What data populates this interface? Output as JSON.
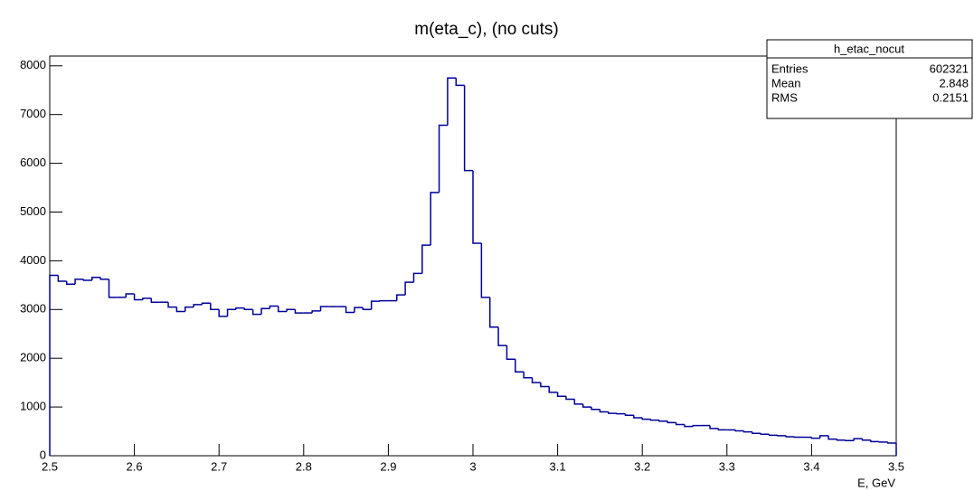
{
  "chart_data": {
    "type": "histogram",
    "title": "m(eta_c), (no cuts)",
    "x_label": "E, GeV",
    "bins": [
      2.5,
      2.51,
      2.52,
      2.53,
      2.54,
      2.55,
      2.56,
      2.57,
      2.58,
      2.59,
      2.6,
      2.61,
      2.62,
      2.63,
      2.64,
      2.65,
      2.66,
      2.67,
      2.68,
      2.69,
      2.7,
      2.71,
      2.72,
      2.73,
      2.74,
      2.75,
      2.76,
      2.77,
      2.78,
      2.79,
      2.8,
      2.81,
      2.82,
      2.83,
      2.84,
      2.85,
      2.86,
      2.87,
      2.88,
      2.89,
      2.9,
      2.91,
      2.92,
      2.93,
      2.94,
      2.95,
      2.96,
      2.97,
      2.98,
      2.99,
      3.0,
      3.01,
      3.02,
      3.03,
      3.04,
      3.05,
      3.06,
      3.07,
      3.08,
      3.09,
      3.1,
      3.11,
      3.12,
      3.13,
      3.14,
      3.15,
      3.16,
      3.17,
      3.18,
      3.19,
      3.2,
      3.21,
      3.22,
      3.23,
      3.24,
      3.25,
      3.26,
      3.27,
      3.28,
      3.29,
      3.3,
      3.31,
      3.32,
      3.33,
      3.34,
      3.35,
      3.36,
      3.37,
      3.38,
      3.39,
      3.4,
      3.41,
      3.42,
      3.43,
      3.44,
      3.45,
      3.46,
      3.47,
      3.48,
      3.49,
      3.5
    ],
    "values": [
      3700,
      3580,
      3520,
      3620,
      3600,
      3660,
      3620,
      3250,
      3250,
      3320,
      3200,
      3230,
      3150,
      3150,
      3050,
      2960,
      3050,
      3100,
      3130,
      3000,
      2860,
      3000,
      3030,
      3000,
      2900,
      3020,
      3070,
      2960,
      3000,
      2930,
      2930,
      2970,
      3060,
      3060,
      3060,
      2940,
      3040,
      3000,
      3170,
      3180,
      3180,
      3300,
      3560,
      3740,
      4320,
      5400,
      6780,
      7750,
      7600,
      5850,
      4360,
      3250,
      2640,
      2260,
      1980,
      1720,
      1600,
      1500,
      1420,
      1300,
      1220,
      1160,
      1060,
      1000,
      950,
      900,
      870,
      860,
      830,
      780,
      750,
      730,
      710,
      680,
      640,
      600,
      620,
      620,
      560,
      530,
      530,
      510,
      490,
      460,
      440,
      420,
      410,
      390,
      380,
      380,
      360,
      410,
      340,
      320,
      310,
      350,
      320,
      290,
      280,
      260
    ],
    "color": "#000099",
    "xlim": [
      2.5,
      3.5
    ],
    "xticks": [
      2.5,
      2.6,
      2.7,
      2.8,
      2.9,
      3,
      3.1,
      3.2,
      3.3,
      3.4,
      3.5
    ],
    "ylim": [
      0,
      8200
    ],
    "yticks": [
      0,
      1000,
      2000,
      3000,
      4000,
      5000,
      6000,
      7000,
      8000
    ],
    "stats": {
      "name": "h_etac_nocut",
      "rows": [
        {
          "label": "Entries",
          "value": 602321
        },
        {
          "label": "Mean",
          "value": 2.848
        },
        {
          "label": "RMS",
          "value": 0.2151
        }
      ]
    }
  }
}
